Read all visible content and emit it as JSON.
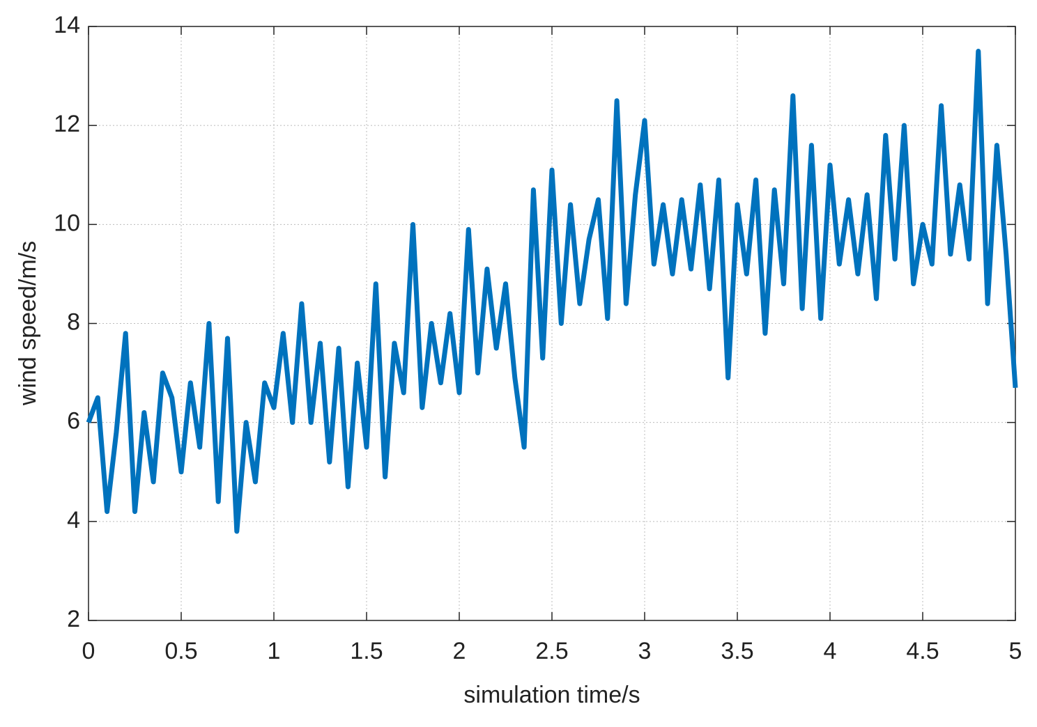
{
  "chart_data": {
    "type": "line",
    "xlabel": "simulation time/s",
    "ylabel": "wind speed/m/s",
    "xlim": [
      0,
      5
    ],
    "ylim": [
      2,
      14
    ],
    "xticks": [
      0,
      0.5,
      1,
      1.5,
      2,
      2.5,
      3,
      3.5,
      4,
      4.5,
      5
    ],
    "yticks": [
      2,
      4,
      6,
      8,
      10,
      12,
      14
    ],
    "grid": true,
    "x": [
      0,
      0.05,
      0.1,
      0.15,
      0.2,
      0.25,
      0.3,
      0.35,
      0.4,
      0.45,
      0.5,
      0.55,
      0.6,
      0.65,
      0.7,
      0.75,
      0.8,
      0.85,
      0.9,
      0.95,
      1,
      1.05,
      1.1,
      1.15,
      1.2,
      1.25,
      1.3,
      1.35,
      1.4,
      1.45,
      1.5,
      1.55,
      1.6,
      1.65,
      1.7,
      1.75,
      1.8,
      1.85,
      1.9,
      1.95,
      2,
      2.05,
      2.1,
      2.15,
      2.2,
      2.25,
      2.3,
      2.35,
      2.4,
      2.45,
      2.5,
      2.55,
      2.6,
      2.65,
      2.7,
      2.75,
      2.8,
      2.85,
      2.9,
      2.95,
      3,
      3.05,
      3.1,
      3.15,
      3.2,
      3.25,
      3.3,
      3.35,
      3.4,
      3.45,
      3.5,
      3.55,
      3.6,
      3.65,
      3.7,
      3.75,
      3.8,
      3.85,
      3.9,
      3.95,
      4,
      4.05,
      4.1,
      4.15,
      4.2,
      4.25,
      4.3,
      4.35,
      4.4,
      4.45,
      4.5,
      4.55,
      4.6,
      4.65,
      4.7,
      4.75,
      4.8,
      4.85,
      4.9,
      4.95,
      5
    ],
    "series": [
      {
        "color": "#0072bd",
        "values": [
          6.0,
          6.5,
          4.2,
          5.8,
          7.8,
          4.2,
          6.2,
          4.8,
          7.0,
          6.5,
          5.0,
          6.8,
          5.5,
          8.0,
          4.4,
          7.7,
          3.8,
          6.0,
          4.8,
          6.8,
          6.3,
          7.8,
          6.0,
          8.4,
          6.0,
          7.6,
          5.2,
          7.5,
          4.7,
          7.2,
          5.5,
          8.8,
          4.9,
          7.6,
          6.6,
          10.0,
          6.3,
          8.0,
          6.8,
          8.2,
          6.6,
          9.9,
          7.0,
          9.1,
          7.5,
          8.8,
          6.9,
          5.5,
          10.7,
          7.3,
          11.1,
          8.0,
          10.4,
          8.4,
          9.7,
          10.5,
          8.1,
          12.5,
          8.4,
          10.6,
          12.1,
          9.2,
          10.4,
          9.0,
          10.5,
          9.1,
          10.8,
          8.7,
          10.9,
          6.9,
          10.4,
          9.0,
          10.9,
          7.8,
          10.7,
          8.8,
          12.6,
          8.3,
          11.6,
          8.1,
          11.2,
          9.2,
          10.5,
          9.0,
          10.6,
          8.5,
          11.8,
          9.3,
          12.0,
          8.8,
          10.0,
          9.2,
          12.4,
          9.4,
          10.8,
          9.3,
          13.5,
          8.4,
          11.6,
          9.4,
          6.7
        ]
      }
    ]
  }
}
